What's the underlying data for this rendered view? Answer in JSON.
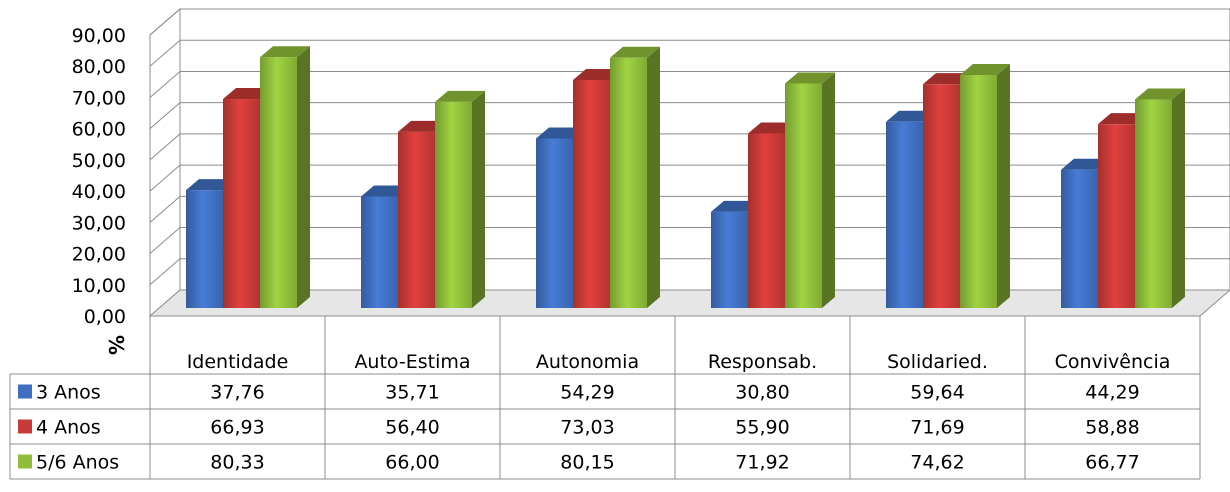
{
  "chart_data": {
    "type": "bar",
    "style": "3d-clustered-column-with-data-table",
    "ylabel": "%",
    "ylim": [
      0,
      90
    ],
    "yticks": [
      "0,00",
      "10,00",
      "20,00",
      "30,00",
      "40,00",
      "50,00",
      "60,00",
      "70,00",
      "80,00",
      "90,00"
    ],
    "grid": true,
    "categories": [
      "Identidade",
      "Auto-Estima",
      "Autonomia",
      "Responsab.",
      "Solidaried.",
      "Convivência"
    ],
    "series": [
      {
        "name": "3 Anos",
        "color": "#3f6fc0",
        "values": [
          37.76,
          35.71,
          54.29,
          30.8,
          59.64,
          44.29
        ],
        "labels": [
          "37,76",
          "35,71",
          "54,29",
          "30,80",
          "59,64",
          "44,29"
        ]
      },
      {
        "name": "4 Anos",
        "color": "#c83a37",
        "values": [
          66.93,
          56.4,
          73.03,
          55.9,
          71.69,
          58.88
        ],
        "labels": [
          "66,93",
          "56,40",
          "73,03",
          "55,90",
          "71,69",
          "58,88"
        ]
      },
      {
        "name": "5/6 Anos",
        "color": "#8fbd3a",
        "values": [
          80.33,
          66.0,
          80.15,
          71.92,
          74.62,
          66.77
        ],
        "labels": [
          "80,33",
          "66,00",
          "80,15",
          "71,92",
          "74,62",
          "66,77"
        ]
      }
    ],
    "legend": "data-table-left"
  }
}
